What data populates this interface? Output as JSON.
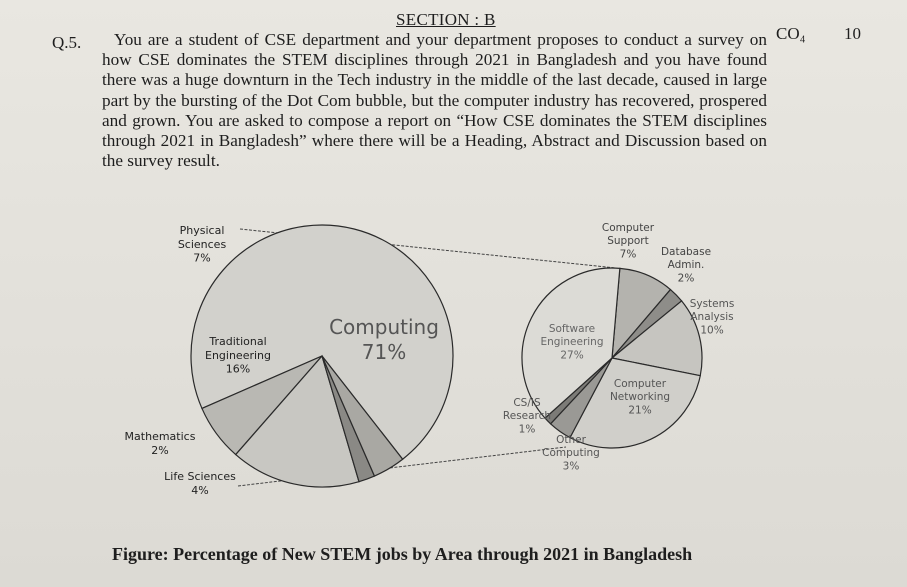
{
  "section_title": "SECTION : B",
  "question": {
    "number": "Q.5.",
    "text": "You are a student of CSE department and your department proposes to conduct a survey on how CSE dominates the STEM disciplines through 2021 in Bangladesh and you have found there was a huge downturn in the Tech industry in the middle of the last decade, caused in large part by the bursting of the Dot Com bubble, but the computer industry has recovered, prospered and grown. You are asked to compose a report on “How CSE dominates the STEM disciplines through 2021 in Bangladesh” where there will be a Heading, Abstract and Discussion based on the survey result.",
    "course_outcome": "CO₄",
    "marks": "10"
  },
  "figure_caption": "Figure: Percentage of New STEM jobs by Area through 2021 in Bangladesh",
  "chart_data": [
    {
      "type": "pie",
      "title": "",
      "slices": [
        {
          "label_lines": [
            "Computing"
          ],
          "pct_label": "71%",
          "value": 71,
          "color": "#d2d1cc"
        },
        {
          "label_lines": [
            "Physical",
            "Sciences"
          ],
          "pct_label": "7%",
          "value": 7,
          "color": "#b9b8b3"
        },
        {
          "label_lines": [
            "Traditional",
            "Engineering"
          ],
          "pct_label": "16%",
          "value": 16,
          "color": "#c8c7c2"
        },
        {
          "label_lines": [
            "Mathematics"
          ],
          "pct_label": "2%",
          "value": 2,
          "color": "#8a8985"
        },
        {
          "label_lines": [
            "Life Sciences"
          ],
          "pct_label": "4%",
          "value": 4,
          "color": "#a9a8a3"
        }
      ]
    },
    {
      "type": "pie",
      "title": "",
      "slices": [
        {
          "label_lines": [
            "Computer",
            "Support"
          ],
          "pct_label": "7%",
          "value": 7,
          "color": "#b4b3ae"
        },
        {
          "label_lines": [
            "Database",
            "Admin."
          ],
          "pct_label": "2%",
          "value": 2,
          "color": "#8e8d89"
        },
        {
          "label_lines": [
            "Systems",
            "Analysis"
          ],
          "pct_label": "10%",
          "value": 10,
          "color": "#c6c5c0"
        },
        {
          "label_lines": [
            "Computer",
            "Networking"
          ],
          "pct_label": "21%",
          "value": 21,
          "color": "#d0cfca"
        },
        {
          "label_lines": [
            "Other",
            "Computing"
          ],
          "pct_label": "3%",
          "value": 3,
          "color": "#9a9995"
        },
        {
          "label_lines": [
            "CS/IS",
            "Research"
          ],
          "pct_label": "1%",
          "value": 1,
          "color": "#7c7b77"
        },
        {
          "label_lines": [
            "Software",
            "Engineering"
          ],
          "pct_label": "27%",
          "value": 27,
          "color": "#dcdbd6"
        }
      ]
    }
  ]
}
